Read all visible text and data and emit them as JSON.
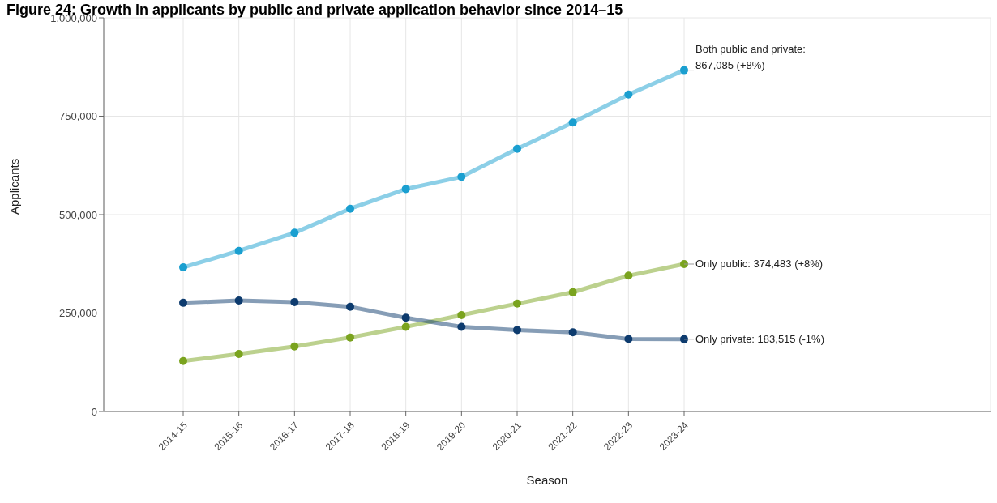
{
  "chart_data": {
    "type": "line",
    "title": "Figure 24: Growth in applicants by public and private application behavior since 2014–15",
    "xlabel": "Season",
    "ylabel": "Applicants",
    "categories": [
      "2014-15",
      "2015-16",
      "2016-17",
      "2017-18",
      "2018-19",
      "2019-20",
      "2020-21",
      "2021-22",
      "2022-23",
      "2023-24"
    ],
    "series": [
      {
        "color": "#1a9fd0",
        "values": [
          366000,
          408000,
          454000,
          515000,
          565000,
          596000,
          667000,
          734000,
          805000,
          867085
        ]
      },
      {
        "color": "#7aa31e",
        "values": [
          128000,
          146000,
          165000,
          188000,
          215000,
          245000,
          274000,
          303000,
          345000,
          374483
        ]
      },
      {
        "color": "#0d3b6e",
        "values": [
          276000,
          282000,
          278000,
          266000,
          238000,
          215000,
          207000,
          201000,
          184000,
          183515
        ]
      }
    ],
    "annotations": [
      {
        "text": "Both public and private:\n867,085 (+8%)",
        "x": "2023-24",
        "y": 867085
      },
      {
        "text": "Only public: 374,483 (+8%)",
        "x": "2023-24",
        "y": 374483
      },
      {
        "text": "Only private: 183,515 (-1%)",
        "x": "2023-24",
        "y": 183515
      }
    ],
    "ylim": [
      0,
      1000000
    ],
    "yticks": [
      0,
      {
        "value": 250000,
        "label": "250,000"
      },
      {
        "value": 500000,
        "label": "500,000"
      },
      {
        "value": 750000,
        "label": "750,000"
      },
      {
        "value": 1000000,
        "label": "1,000,000"
      }
    ],
    "grid": true,
    "marker": "circle",
    "legend": false
  }
}
